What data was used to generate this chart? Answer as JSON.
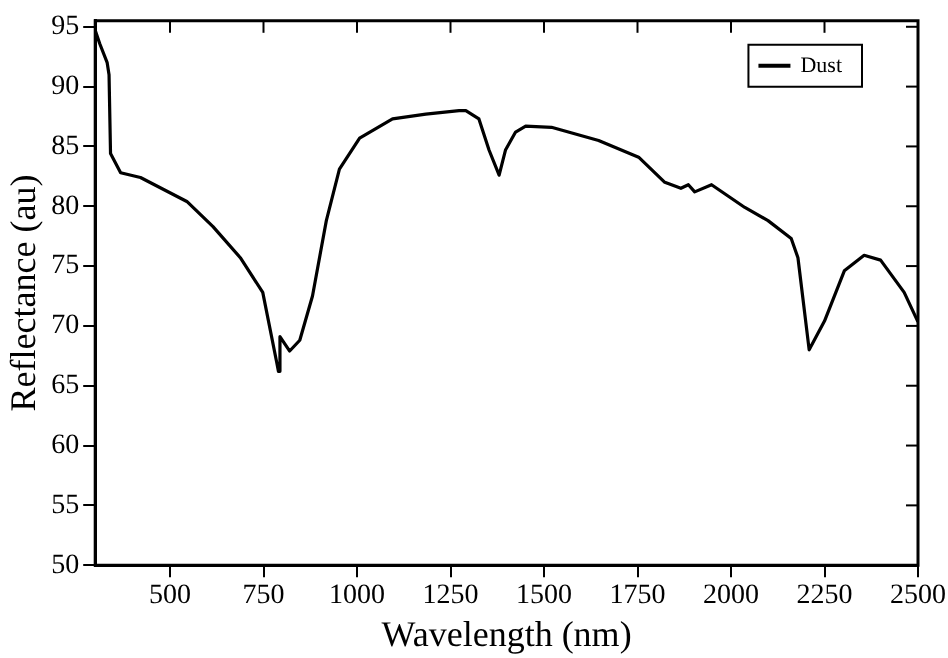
{
  "chart_data": {
    "type": "line",
    "xlabel": "Wavelength (nm)",
    "ylabel": "Reflectance (au)",
    "xlim": [
      300,
      2500
    ],
    "xticks": [
      500,
      750,
      1000,
      1250,
      1500,
      1750,
      2000,
      2250,
      2500
    ],
    "ylim": [
      50,
      95.5
    ],
    "yticks": [
      50,
      55,
      60,
      65,
      70,
      75,
      80,
      85,
      90,
      95
    ],
    "grid": false,
    "legend": "top right",
    "marker": "none",
    "line_style": "solid",
    "x": [
      300,
      312,
      332,
      337,
      341,
      368,
      421,
      545,
      615,
      688,
      748,
      785,
      790,
      794,
      820,
      847,
      881,
      918,
      953,
      1007,
      1095,
      1184,
      1273,
      1291,
      1326,
      1353,
      1380,
      1397,
      1424,
      1451,
      1520,
      1646,
      1753,
      1823,
      1866,
      1886,
      1903,
      1948,
      2037,
      2099,
      2161,
      2179,
      2209,
      2250,
      2303,
      2356,
      2400,
      2463,
      2499
    ],
    "series": [
      {
        "name": "Dust",
        "color": "#000000",
        "values": [
          94.7,
          93.6,
          92.0,
          91.0,
          84.4,
          82.8,
          82.4,
          80.4,
          78.3,
          75.7,
          72.8,
          67.0,
          66.2,
          69.1,
          67.9,
          68.8,
          72.5,
          78.8,
          83.1,
          85.7,
          87.3,
          87.7,
          88.0,
          88.0,
          87.3,
          84.7,
          82.6,
          84.7,
          86.2,
          86.7,
          86.6,
          85.5,
          84.1,
          82.0,
          81.5,
          81.8,
          81.2,
          81.8,
          79.9,
          78.8,
          77.3,
          75.7,
          68.0,
          70.4,
          74.6,
          75.9,
          75.5,
          72.8,
          70.4
        ]
      }
    ]
  }
}
